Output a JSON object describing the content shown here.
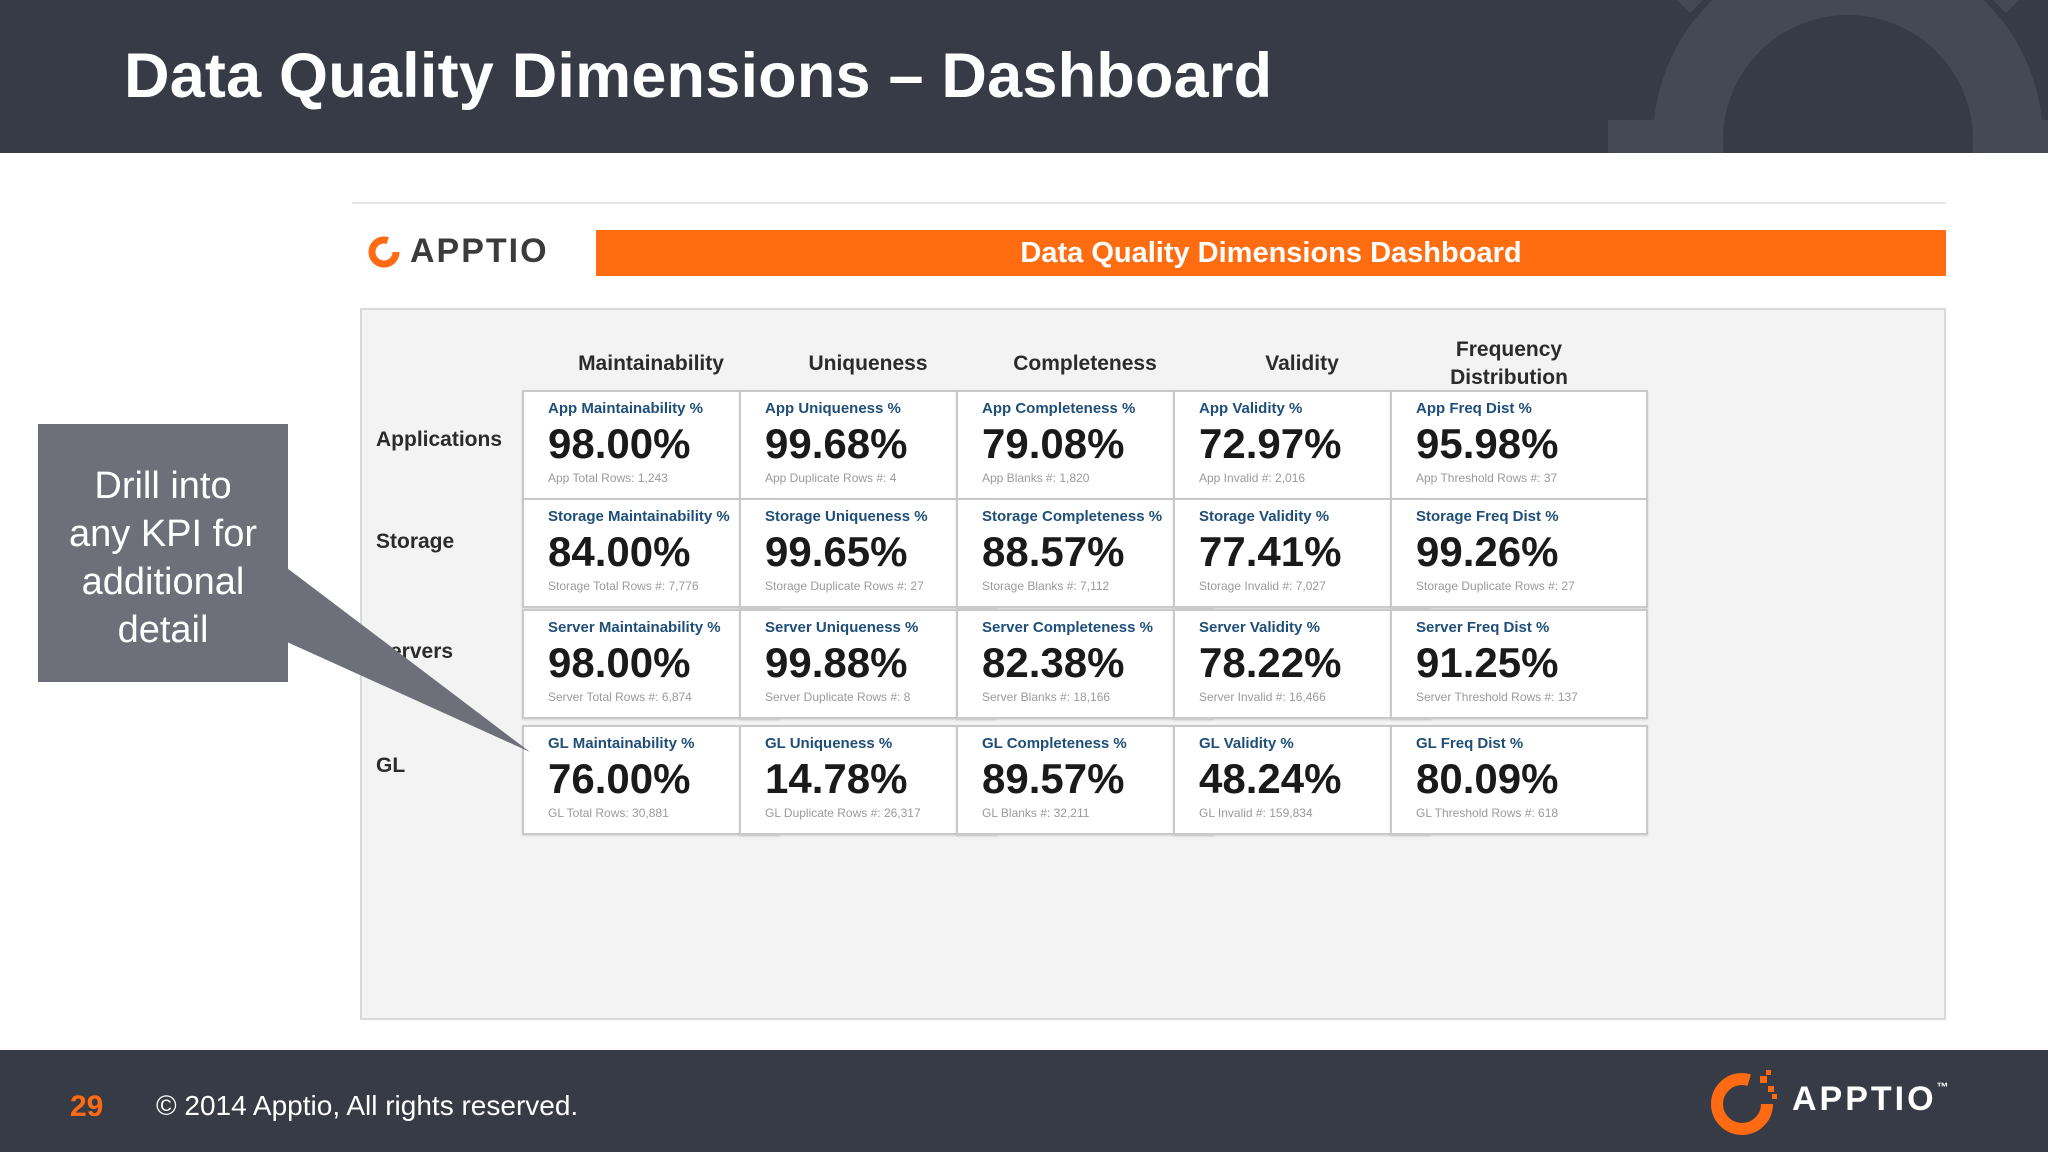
{
  "slide": {
    "title": "Data Quality Dimensions – Dashboard",
    "page_number": "29",
    "copyright": "© 2014 Apptio, All rights reserved.",
    "footer_logo": "APPTIO",
    "footer_logo_tm": "™",
    "accent_color": "#ff6a13",
    "header_color": "#363b45"
  },
  "callout": {
    "lines": [
      "Drill into",
      "any KPI for",
      "additional",
      "detail"
    ]
  },
  "dashboard": {
    "logo_text": "APPTIO",
    "banner_title": "Data Quality Dimensions Dashboard",
    "columns": [
      "Maintainability",
      "Uniqueness",
      "Completeness",
      "Validity",
      "Frequency Distribution"
    ],
    "rows": [
      {
        "label": "Applications",
        "cards": [
          {
            "title": "App Maintainability %",
            "value": "98.00%",
            "sub": "App Total Rows: 1,243"
          },
          {
            "title": "App Uniqueness %",
            "value": "99.68%",
            "sub": "App Duplicate Rows #: 4"
          },
          {
            "title": "App Completeness %",
            "value": "79.08%",
            "sub": "App Blanks #: 1,820"
          },
          {
            "title": "App Validity %",
            "value": "72.97%",
            "sub": "App Invalid #: 2,016"
          },
          {
            "title": "App Freq Dist %",
            "value": "95.98%",
            "sub": "App Threshold Rows #: 37"
          }
        ]
      },
      {
        "label": "Storage",
        "cards": [
          {
            "title": "Storage Maintainability %",
            "value": "84.00%",
            "sub": "Storage Total Rows #: 7,776"
          },
          {
            "title": "Storage Uniqueness %",
            "value": "99.65%",
            "sub": "Storage Duplicate Rows #: 27"
          },
          {
            "title": "Storage Completeness %",
            "value": "88.57%",
            "sub": "Storage Blanks #: 7,112"
          },
          {
            "title": "Storage Validity %",
            "value": "77.41%",
            "sub": "Storage Invalid #: 7,027"
          },
          {
            "title": "Storage Freq Dist %",
            "value": "99.26%",
            "sub": "Storage Duplicate Rows #: 27"
          }
        ]
      },
      {
        "label": "Servers",
        "cards": [
          {
            "title": "Server Maintainability %",
            "value": "98.00%",
            "sub": "Server Total Rows #: 6,874"
          },
          {
            "title": "Server Uniqueness %",
            "value": "99.88%",
            "sub": "Server Duplicate Rows #: 8"
          },
          {
            "title": "Server Completeness %",
            "value": "82.38%",
            "sub": "Server Blanks #: 18,166"
          },
          {
            "title": "Server Validity %",
            "value": "78.22%",
            "sub": "Server Invalid #: 16,466"
          },
          {
            "title": "Server Freq Dist %",
            "value": "91.25%",
            "sub": "Server Threshold Rows #: 137"
          }
        ]
      },
      {
        "label": "GL",
        "cards": [
          {
            "title": "GL Maintainability %",
            "value": "76.00%",
            "sub": "GL Total Rows: 30,881"
          },
          {
            "title": "GL Uniqueness %",
            "value": "14.78%",
            "sub": "GL Duplicate Rows #: 26,317"
          },
          {
            "title": "GL Completeness %",
            "value": "89.57%",
            "sub": "GL Blanks #: 32,211"
          },
          {
            "title": "GL Validity %",
            "value": "48.24%",
            "sub": "GL Invalid #: 159,834"
          },
          {
            "title": "GL Freq Dist %",
            "value": "80.09%",
            "sub": "GL Threshold Rows #: 618"
          }
        ]
      }
    ]
  }
}
